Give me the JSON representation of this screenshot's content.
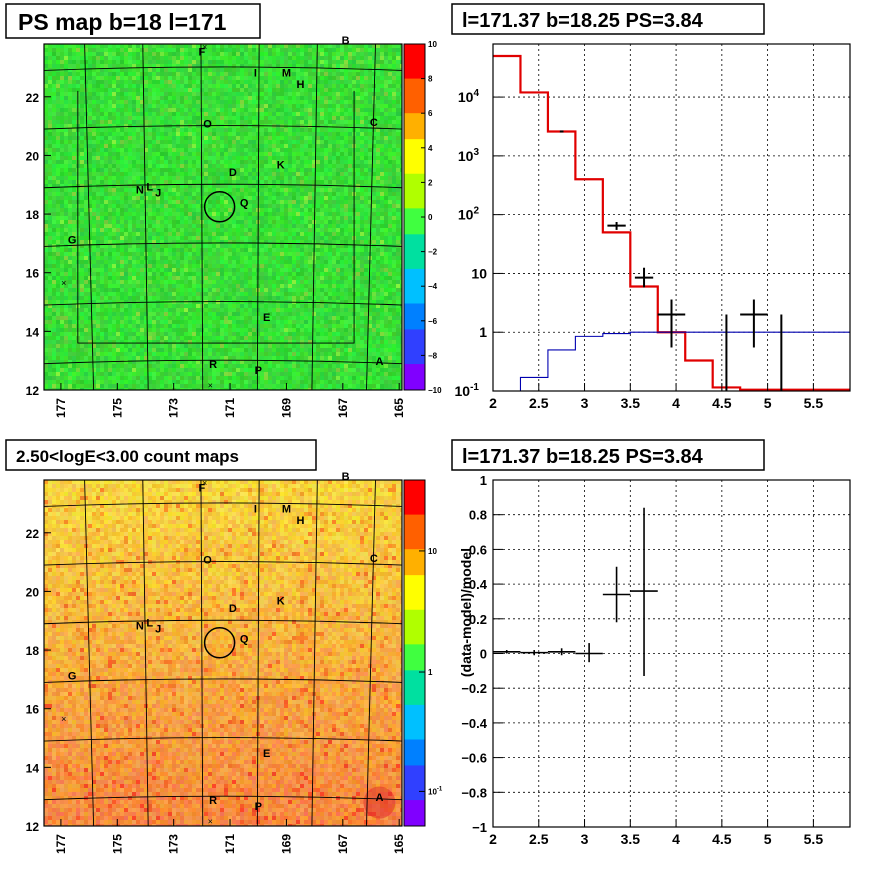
{
  "colors": {
    "hist_red": "#e00000",
    "hist_blue": "#0000b0",
    "map_green": "#2ed22e",
    "count_orange": "#f2a03a",
    "frame": "#000000"
  },
  "panels": {
    "tl_title": "PS map b=18 l=171",
    "tr_title": "l=171.37 b=18.25 PS=3.84",
    "bl_title": "2.50<logE<3.00 count maps",
    "br_title": "l=171.37 b=18.25 PS=3.84"
  },
  "maps": {
    "x_ticks": [
      "177",
      "175",
      "173",
      "171",
      "169",
      "167",
      "165"
    ],
    "y_ticks": [
      "12",
      "14",
      "16",
      "18",
      "20",
      "22"
    ],
    "source_labels": [
      {
        "t": "F",
        "l": 172.0,
        "b": 23.4
      },
      {
        "t": "B",
        "l": 166.9,
        "b": 23.8
      },
      {
        "t": "I",
        "l": 170.1,
        "b": 22.7
      },
      {
        "t": "M",
        "l": 169.0,
        "b": 22.7
      },
      {
        "t": "H",
        "l": 168.5,
        "b": 22.3
      },
      {
        "t": "C",
        "l": 165.9,
        "b": 21.0
      },
      {
        "t": "O",
        "l": 171.8,
        "b": 20.95
      },
      {
        "t": "D",
        "l": 170.9,
        "b": 19.3
      },
      {
        "t": "K",
        "l": 169.2,
        "b": 19.55
      },
      {
        "t": "N",
        "l": 174.2,
        "b": 18.7
      },
      {
        "t": "L",
        "l": 173.85,
        "b": 18.8
      },
      {
        "t": "J",
        "l": 173.55,
        "b": 18.6
      },
      {
        "t": "Q",
        "l": 170.5,
        "b": 18.25
      },
      {
        "t": "G",
        "l": 176.6,
        "b": 17.0
      },
      {
        "t": "E",
        "l": 169.7,
        "b": 14.35
      },
      {
        "t": "R",
        "l": 171.6,
        "b": 12.75
      },
      {
        "t": "P",
        "l": 170.0,
        "b": 12.55
      },
      {
        "t": "A",
        "l": 165.7,
        "b": 12.85
      }
    ],
    "ps_colorbar_ticks": [
      "10",
      "8",
      "6",
      "4",
      "2",
      "0",
      "−2",
      "−4",
      "−6",
      "−8",
      "−10"
    ],
    "count_colorbar_ticks": [
      "10",
      "1"
    ],
    "count_colorbar_tick_exp": [
      "10",
      "-1"
    ]
  },
  "chart_data": [
    {
      "type": "heatmap",
      "title": "PS map b=18 l=171",
      "xlim": [
        177.6,
        164.9
      ],
      "ylim": [
        12.0,
        23.8
      ],
      "zlim": [
        -10,
        10
      ],
      "colorbar_ticks": [
        10,
        8,
        6,
        4,
        2,
        0,
        -2,
        -4,
        -6,
        -8,
        -10
      ],
      "highlight": {
        "l": 171.37,
        "b": 18.25
      }
    },
    {
      "type": "line",
      "title": "l=171.37 b=18.25 PS=3.84",
      "x_ticks": [
        "2",
        "2.5",
        "3",
        "3.5",
        "4",
        "4.5",
        "5",
        "5.5"
      ],
      "y_ticks": [
        "10^-1",
        "1",
        "10",
        "10^2",
        "10^3",
        "10^4"
      ],
      "y_log": true,
      "xlim": [
        2.0,
        5.9
      ],
      "ylim": [
        0.1,
        80000
      ],
      "grid": true,
      "series": [
        {
          "edges": [
            2.0,
            2.3,
            2.6,
            2.9,
            3.2,
            3.5,
            3.8,
            4.1,
            4.4,
            4.7,
            5.0,
            5.3,
            5.6,
            5.9
          ],
          "values": [
            50000,
            12000,
            2600,
            400,
            50,
            6,
            1.0,
            0.33,
            0.115,
            0.105,
            0.105,
            0.105,
            0.105
          ],
          "color": "#e00000"
        },
        {
          "edges": [
            2.0,
            2.3,
            2.6,
            2.9,
            3.2,
            3.5,
            3.8,
            4.1,
            4.4,
            4.7,
            5.0,
            5.3,
            5.6,
            5.9
          ],
          "values": [
            0.1,
            0.17,
            0.5,
            0.85,
            0.95,
            1.0,
            1.0,
            1.0,
            1.0,
            1.0,
            1.0,
            1.0,
            1.0
          ],
          "color": "#0000b0"
        }
      ],
      "data_points": [
        {
          "x": 2.75,
          "y": 2600,
          "xerr": 0.02,
          "ylo": 2600,
          "yhi": 2600
        },
        {
          "x": 3.35,
          "y": 65,
          "xerr": 0.1,
          "ylo": 55,
          "yhi": 75
        },
        {
          "x": 3.65,
          "y": 8.5,
          "xerr": 0.1,
          "ylo": 5.8,
          "yhi": 12.5
        },
        {
          "x": 3.95,
          "y": 2.0,
          "xerr": 0.15,
          "ylo": 0.55,
          "yhi": 3.6
        },
        {
          "x": 4.55,
          "y": 0.1,
          "xerr": 0.0,
          "ylo": 0.1,
          "yhi": 2.0
        },
        {
          "x": 4.85,
          "y": 2.0,
          "xerr": 0.15,
          "ylo": 0.55,
          "yhi": 3.6
        },
        {
          "x": 5.15,
          "y": 0.1,
          "xerr": 0.0,
          "ylo": 0.1,
          "yhi": 2.0
        }
      ]
    },
    {
      "type": "heatmap",
      "title": "2.50<logE<3.00 count maps",
      "xlim": [
        177.6,
        164.9
      ],
      "ylim": [
        12.0,
        23.8
      ],
      "z_log": true,
      "highlight": {
        "l": 171.37,
        "b": 18.25
      }
    },
    {
      "type": "scatter",
      "title": "l=171.37 b=18.25 PS=3.84",
      "ylabel": "(data-model)/model",
      "x_ticks": [
        "2",
        "2.5",
        "3",
        "3.5",
        "4",
        "4.5",
        "5",
        "5.5"
      ],
      "y_ticks": [
        "1",
        "0.8",
        "0.6",
        "0.4",
        "0.2",
        "0",
        "−0.2",
        "−0.4",
        "−0.6",
        "−0.8",
        "−1"
      ],
      "xlim": [
        2.0,
        5.9
      ],
      "ylim": [
        -1.0,
        1.0
      ],
      "grid": true,
      "points": [
        {
          "x": 2.15,
          "y": 0.01,
          "xerr": 0.15,
          "ylo": 0.0,
          "yhi": 0.02
        },
        {
          "x": 2.45,
          "y": 0.005,
          "xerr": 0.15,
          "ylo": -0.01,
          "yhi": 0.02
        },
        {
          "x": 2.75,
          "y": 0.01,
          "xerr": 0.15,
          "ylo": -0.01,
          "yhi": 0.03
        },
        {
          "x": 3.05,
          "y": 0.0,
          "xerr": 0.15,
          "ylo": -0.05,
          "yhi": 0.06
        },
        {
          "x": 3.35,
          "y": 0.34,
          "xerr": 0.15,
          "ylo": 0.18,
          "yhi": 0.5
        },
        {
          "x": 3.65,
          "y": 0.36,
          "xerr": 0.15,
          "ylo": -0.13,
          "yhi": 0.84
        }
      ]
    }
  ]
}
